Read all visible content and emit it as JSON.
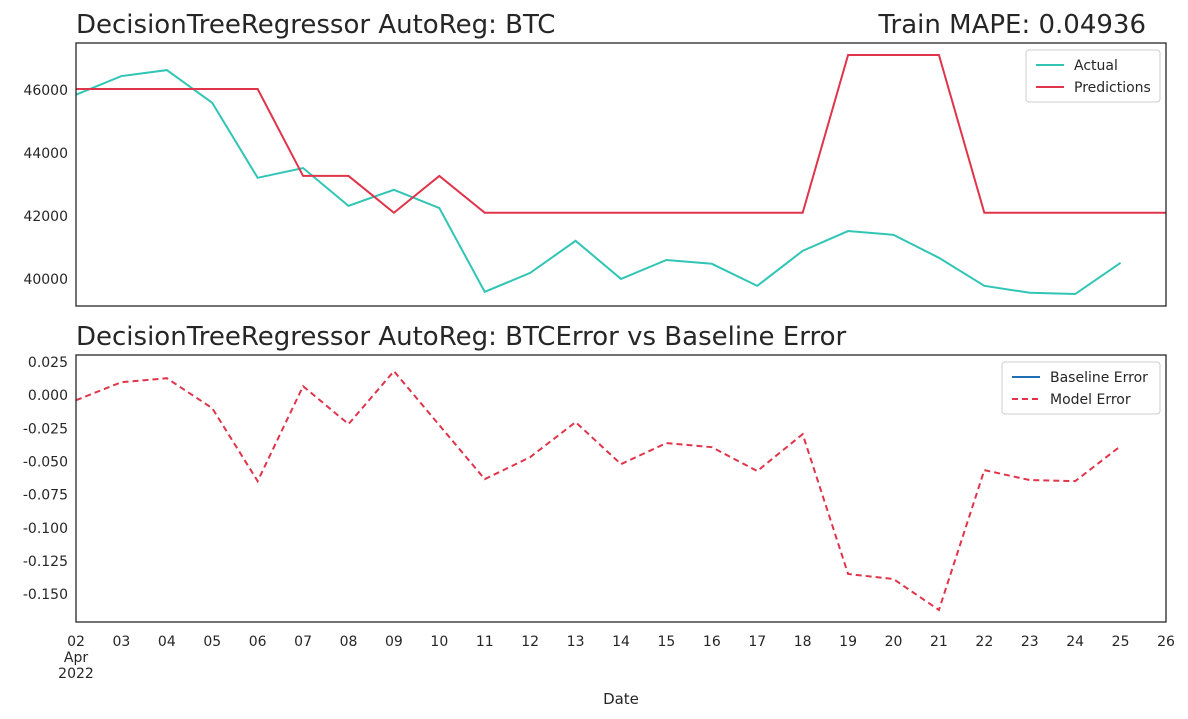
{
  "chart_data": [
    {
      "type": "line",
      "title": "DecisionTreeRegressor AutoReg: BTC",
      "right_title": "Train MAPE: 0.04936",
      "x": [
        "2022-04-02",
        "2022-04-03",
        "2022-04-04",
        "2022-04-05",
        "2022-04-06",
        "2022-04-07",
        "2022-04-08",
        "2022-04-09",
        "2022-04-10",
        "2022-04-11",
        "2022-04-12",
        "2022-04-13",
        "2022-04-14",
        "2022-04-15",
        "2022-04-16",
        "2022-04-17",
        "2022-04-18",
        "2022-04-19",
        "2022-04-20",
        "2022-04-21",
        "2022-04-22",
        "2022-04-23",
        "2022-04-24",
        "2022-04-25",
        "2022-04-26"
      ],
      "xlim": [
        "2022-04-02",
        "2022-04-26"
      ],
      "series": [
        {
          "name": "Actual",
          "color": "#30c5b5",
          "values": [
            45850,
            46440,
            46630,
            45590,
            43210,
            43520,
            42320,
            42830,
            42250,
            39590,
            40190,
            41210,
            40000,
            40600,
            40480,
            39780,
            40890,
            41520,
            41400,
            40670,
            39780,
            39560,
            39520,
            40510,
            null
          ]
        },
        {
          "name": "Predictions",
          "color": "#e0344a",
          "values": [
            46030,
            46030,
            46030,
            46030,
            46030,
            43270,
            43270,
            42100,
            43270,
            42100,
            42100,
            42100,
            42100,
            42100,
            42100,
            42100,
            42100,
            47110,
            47110,
            47110,
            42100,
            42100,
            42100,
            42100,
            42100
          ]
        }
      ],
      "ylim": [
        39140,
        47490
      ],
      "yticks": [
        40000,
        42000,
        44000,
        46000
      ],
      "grid": false,
      "legend": "upper right"
    },
    {
      "type": "line",
      "title": "DecisionTreeRegressor AutoReg: BTCError vs Baseline Error",
      "xlabel": "Date",
      "x": [
        "2022-04-02",
        "2022-04-03",
        "2022-04-04",
        "2022-04-05",
        "2022-04-06",
        "2022-04-07",
        "2022-04-08",
        "2022-04-09",
        "2022-04-10",
        "2022-04-11",
        "2022-04-12",
        "2022-04-13",
        "2022-04-14",
        "2022-04-15",
        "2022-04-16",
        "2022-04-17",
        "2022-04-18",
        "2022-04-19",
        "2022-04-20",
        "2022-04-21",
        "2022-04-22",
        "2022-04-23",
        "2022-04-24",
        "2022-04-25",
        "2022-04-26"
      ],
      "xlim": [
        "2022-04-02",
        "2022-04-26"
      ],
      "xticks": [
        {
          "value": "2022-04-02",
          "label": "02\nApr\n2022"
        },
        {
          "value": "2022-04-03",
          "label": "03"
        },
        {
          "value": "2022-04-04",
          "label": "04"
        },
        {
          "value": "2022-04-05",
          "label": "05"
        },
        {
          "value": "2022-04-06",
          "label": "06"
        },
        {
          "value": "2022-04-07",
          "label": "07"
        },
        {
          "value": "2022-04-08",
          "label": "08"
        },
        {
          "value": "2022-04-09",
          "label": "09"
        },
        {
          "value": "2022-04-10",
          "label": "10"
        },
        {
          "value": "2022-04-11",
          "label": "11"
        },
        {
          "value": "2022-04-12",
          "label": "12"
        },
        {
          "value": "2022-04-13",
          "label": "13"
        },
        {
          "value": "2022-04-14",
          "label": "14"
        },
        {
          "value": "2022-04-15",
          "label": "15"
        },
        {
          "value": "2022-04-16",
          "label": "16"
        },
        {
          "value": "2022-04-17",
          "label": "17"
        },
        {
          "value": "2022-04-18",
          "label": "18"
        },
        {
          "value": "2022-04-19",
          "label": "19"
        },
        {
          "value": "2022-04-20",
          "label": "20"
        },
        {
          "value": "2022-04-21",
          "label": "21"
        },
        {
          "value": "2022-04-22",
          "label": "22"
        },
        {
          "value": "2022-04-23",
          "label": "23"
        },
        {
          "value": "2022-04-24",
          "label": "24"
        },
        {
          "value": "2022-04-25",
          "label": "25"
        },
        {
          "value": "2022-04-26",
          "label": "26"
        }
      ],
      "series": [
        {
          "name": "Baseline Error",
          "color": "#1f6fb4",
          "values": [
            null,
            null,
            null,
            null,
            null,
            null,
            null,
            null,
            null,
            null,
            null,
            null,
            null,
            null,
            null,
            null,
            null,
            null,
            null,
            null,
            null,
            null,
            null,
            null,
            null
          ]
        },
        {
          "name": "Model Error",
          "color": "#e0344a",
          "linestyle": "dashed",
          "values": [
            -0.0038,
            0.0098,
            0.0128,
            -0.0098,
            -0.0648,
            0.0068,
            -0.0218,
            0.0181,
            -0.0226,
            -0.0633,
            -0.0467,
            -0.0203,
            -0.052,
            -0.0361,
            -0.0392,
            -0.0572,
            -0.0294,
            -0.1348,
            -0.1386,
            -0.1619,
            -0.0565,
            -0.064,
            -0.0648,
            -0.0384,
            null
          ]
        }
      ],
      "ylim": [
        -0.171,
        0.0303
      ],
      "yticks": [
        0.025,
        {
          "value": 0,
          "label": "0.000"
        },
        -0.025,
        {
          "value": -0.05,
          "label": "-0.050"
        },
        -0.075,
        {
          "value": -0.1,
          "label": "-0.100"
        },
        -0.125,
        {
          "value": -0.15,
          "label": "-0.150"
        }
      ],
      "grid": false,
      "legend": "upper right"
    }
  ]
}
